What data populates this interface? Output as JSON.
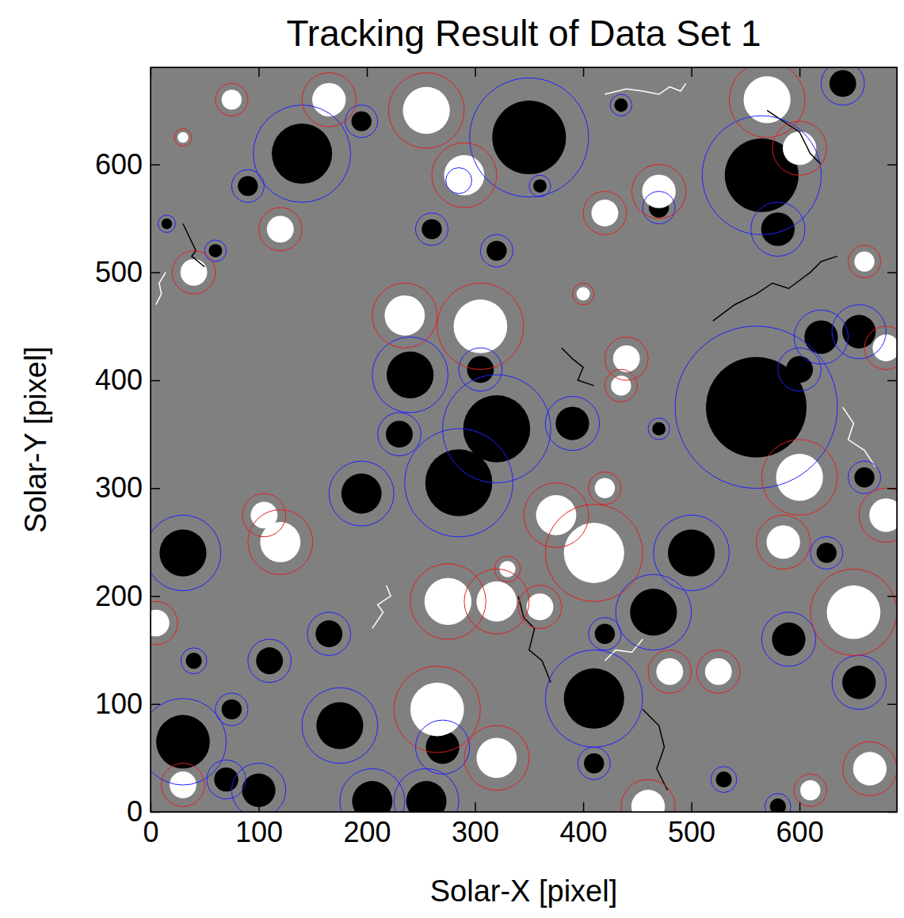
{
  "chart_data": {
    "type": "scatter",
    "title": "Tracking Result of Data Set 1",
    "x_label": "Solar-X [pixel]",
    "y_label": "Solar-Y [pixel]",
    "xlim": [
      0,
      690
    ],
    "ylim": [
      0,
      690
    ],
    "xticks": [
      0,
      100,
      200,
      300,
      400,
      500,
      600
    ],
    "yticks": [
      0,
      100,
      200,
      300,
      400,
      500,
      600
    ],
    "grid": false,
    "background": "#808080",
    "groups": [
      {
        "color": "#000000",
        "circle_color": "#2020ff",
        "x": [
          350,
          565,
          560,
          320,
          285,
          140,
          30,
          30,
          410,
          465,
          500,
          240,
          195,
          175,
          205,
          255,
          100,
          580,
          620,
          655,
          655,
          590,
          640,
          390,
          230,
          110,
          165,
          75,
          70,
          270,
          410,
          420,
          305,
          260,
          320,
          600,
          40,
          90,
          470,
          15,
          60,
          435,
          470,
          580,
          660,
          625,
          530,
          360,
          285,
          195
        ],
        "y": [
          625,
          590,
          375,
          355,
          305,
          610,
          240,
          65,
          105,
          185,
          240,
          405,
          295,
          80,
          10,
          10,
          20,
          540,
          440,
          445,
          120,
          160,
          675,
          360,
          350,
          140,
          165,
          95,
          30,
          60,
          45,
          165,
          410,
          540,
          520,
          410,
          140,
          580,
          560,
          545,
          520,
          655,
          355,
          5,
          310,
          240,
          30,
          580,
          585,
          640
        ],
        "r": [
          55,
          55,
          75,
          50,
          50,
          45,
          35,
          40,
          45,
          35,
          35,
          35,
          30,
          35,
          30,
          30,
          25,
          25,
          25,
          25,
          25,
          25,
          20,
          25,
          20,
          20,
          20,
          15,
          18,
          25,
          15,
          15,
          20,
          15,
          15,
          20,
          12,
          15,
          15,
          8,
          10,
          10,
          10,
          12,
          15,
          15,
          12,
          10,
          12,
          15
        ]
      },
      {
        "color": "#ffffff",
        "circle_color": "#e02020",
        "x": [
          165,
          255,
          570,
          290,
          235,
          305,
          410,
          375,
          275,
          320,
          265,
          320,
          460,
          650,
          665,
          120,
          105,
          120,
          40,
          600,
          585,
          600,
          470,
          440,
          360,
          480,
          525,
          30,
          5,
          680,
          680,
          660,
          420,
          330,
          75,
          30,
          610,
          420,
          400,
          435
        ],
        "y": [
          660,
          650,
          660,
          590,
          460,
          450,
          240,
          275,
          195,
          195,
          95,
          50,
          5,
          185,
          40,
          250,
          275,
          540,
          500,
          310,
          250,
          615,
          575,
          420,
          190,
          130,
          130,
          25,
          175,
          275,
          430,
          510,
          300,
          225,
          660,
          625,
          20,
          555,
          480,
          395
        ],
        "r": [
          25,
          35,
          35,
          30,
          30,
          40,
          45,
          30,
          35,
          30,
          40,
          30,
          25,
          40,
          25,
          30,
          20,
          20,
          20,
          35,
          25,
          25,
          25,
          20,
          20,
          20,
          20,
          20,
          20,
          25,
          20,
          15,
          15,
          12,
          15,
          8,
          15,
          20,
          10,
          15
        ]
      }
    ],
    "tracks": [
      {
        "color": "#ffffff",
        "x": [
          205,
          215,
          210,
          222,
          218
        ],
        "y": [
          170,
          185,
          192,
          200,
          210
        ]
      },
      {
        "color": "#000000",
        "x": [
          340,
          345,
          355,
          350,
          362,
          370
        ],
        "y": [
          200,
          180,
          170,
          150,
          140,
          120
        ]
      },
      {
        "color": "#000000",
        "x": [
          30,
          42,
          38,
          50
        ],
        "y": [
          545,
          520,
          515,
          505
        ]
      },
      {
        "color": "#ffffff",
        "x": [
          5,
          10,
          8,
          14
        ],
        "y": [
          470,
          480,
          490,
          500
        ]
      },
      {
        "color": "#000000",
        "x": [
          520,
          540,
          560,
          575,
          590,
          610,
          620,
          635
        ],
        "y": [
          455,
          470,
          480,
          490,
          485,
          500,
          510,
          515
        ]
      },
      {
        "color": "#ffffff",
        "x": [
          640,
          650,
          645,
          660,
          670
        ],
        "y": [
          375,
          360,
          345,
          335,
          320
        ]
      },
      {
        "color": "#000000",
        "x": [
          380,
          390,
          400,
          395,
          410
        ],
        "y": [
          430,
          420,
          412,
          400,
          395
        ]
      },
      {
        "color": "#ffffff",
        "x": [
          420,
          440,
          455,
          470,
          480,
          490,
          495
        ],
        "y": [
          665,
          670,
          668,
          665,
          672,
          668,
          675
        ]
      },
      {
        "color": "#000000",
        "x": [
          455,
          470,
          475,
          468,
          478
        ],
        "y": [
          95,
          80,
          60,
          40,
          20
        ]
      },
      {
        "color": "#000000",
        "x": [
          570,
          585,
          600,
          610,
          620
        ],
        "y": [
          650,
          640,
          630,
          610,
          600
        ]
      },
      {
        "color": "#ffffff",
        "x": [
          420,
          430,
          445,
          455
        ],
        "y": [
          140,
          150,
          148,
          160
        ]
      }
    ]
  }
}
